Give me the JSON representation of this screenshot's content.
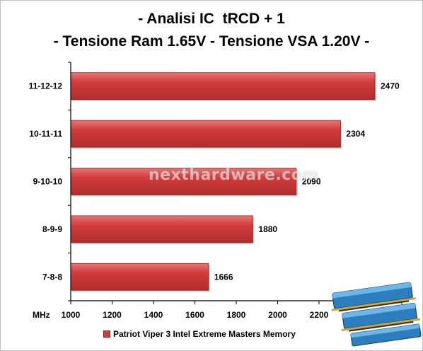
{
  "chart_data": {
    "type": "bar",
    "orientation": "horizontal",
    "title": "- Analisi IC  tRCD + 1",
    "subtitle": "- Tensione Ram 1.65V - Tensione VSA 1.20V -",
    "xlabel": "MHz",
    "ylabel": "",
    "categories": [
      "11-12-12",
      "10-11-11",
      "9-10-10",
      "8-9-9",
      "7-8-8"
    ],
    "series": [
      {
        "name": "Patriot Viper 3 Intel Extreme Masters Memory",
        "values": [
          2470,
          2304,
          2090,
          1880,
          1666
        ],
        "color": "#d23b3b"
      }
    ],
    "xlim": [
      1000,
      2600
    ],
    "xticks": [
      "1000",
      "1200",
      "1400",
      "1600",
      "1800",
      "2000",
      "2200",
      "2400",
      "2600"
    ],
    "grid": false,
    "legend_position": "bottom"
  },
  "watermark": "nexthardware.com",
  "colors": {
    "bar": "#d23b3b",
    "bar_dark": "#a82727",
    "bar_light": "#e36a6a",
    "axis": "#000000"
  }
}
